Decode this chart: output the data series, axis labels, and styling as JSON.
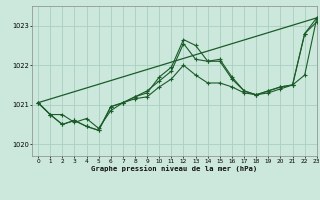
{
  "title": "Graphe pression niveau de la mer (hPa)",
  "background_color": "#cce8dc",
  "grid_color": "#aacfbf",
  "line_color": "#1a5c28",
  "xlim": [
    -0.5,
    23
  ],
  "ylim": [
    1019.7,
    1023.5
  ],
  "yticks": [
    1020,
    1021,
    1022,
    1023
  ],
  "xticks": [
    0,
    1,
    2,
    3,
    4,
    5,
    6,
    7,
    8,
    9,
    10,
    11,
    12,
    13,
    14,
    15,
    16,
    17,
    18,
    19,
    20,
    21,
    22,
    23
  ],
  "trend_x": [
    0,
    23
  ],
  "trend_y": [
    1021.05,
    1023.2
  ],
  "series2_x": [
    0,
    1,
    2,
    3,
    4,
    5,
    6,
    7,
    8,
    9,
    10,
    11,
    12,
    13,
    14,
    15,
    16,
    17,
    18,
    19,
    20,
    21,
    22,
    23
  ],
  "series2_y": [
    1021.05,
    1020.75,
    1020.75,
    1020.55,
    1020.65,
    1020.4,
    1020.85,
    1021.05,
    1021.15,
    1021.2,
    1021.45,
    1021.65,
    1022.0,
    1021.75,
    1021.55,
    1021.55,
    1021.45,
    1021.3,
    1021.25,
    1021.3,
    1021.4,
    1021.5,
    1021.75,
    1023.2
  ],
  "series3_x": [
    0,
    1,
    2,
    3,
    4,
    5,
    6,
    7,
    8,
    9,
    10,
    11,
    12,
    13,
    14,
    15,
    16,
    17,
    18,
    19,
    20,
    21,
    22,
    23
  ],
  "series3_y": [
    1021.05,
    1020.75,
    1020.5,
    1020.6,
    1020.45,
    1020.35,
    1020.95,
    1021.05,
    1021.2,
    1021.35,
    1021.6,
    1021.85,
    1022.55,
    1022.15,
    1022.1,
    1022.15,
    1021.7,
    1021.35,
    1021.25,
    1021.35,
    1021.45,
    1021.5,
    1022.8,
    1023.1
  ],
  "series4_x": [
    0,
    1,
    2,
    3,
    4,
    5,
    6,
    7,
    8,
    9,
    10,
    11,
    12,
    13,
    14,
    15,
    16,
    17,
    18,
    19,
    20,
    21,
    22,
    23
  ],
  "series4_y": [
    1021.05,
    1020.75,
    1020.5,
    1020.6,
    1020.45,
    1020.35,
    1020.95,
    1021.05,
    1021.2,
    1021.3,
    1021.7,
    1021.95,
    1022.65,
    1022.5,
    1022.1,
    1022.1,
    1021.65,
    1021.35,
    1021.25,
    1021.35,
    1021.45,
    1021.5,
    1022.8,
    1023.2
  ]
}
